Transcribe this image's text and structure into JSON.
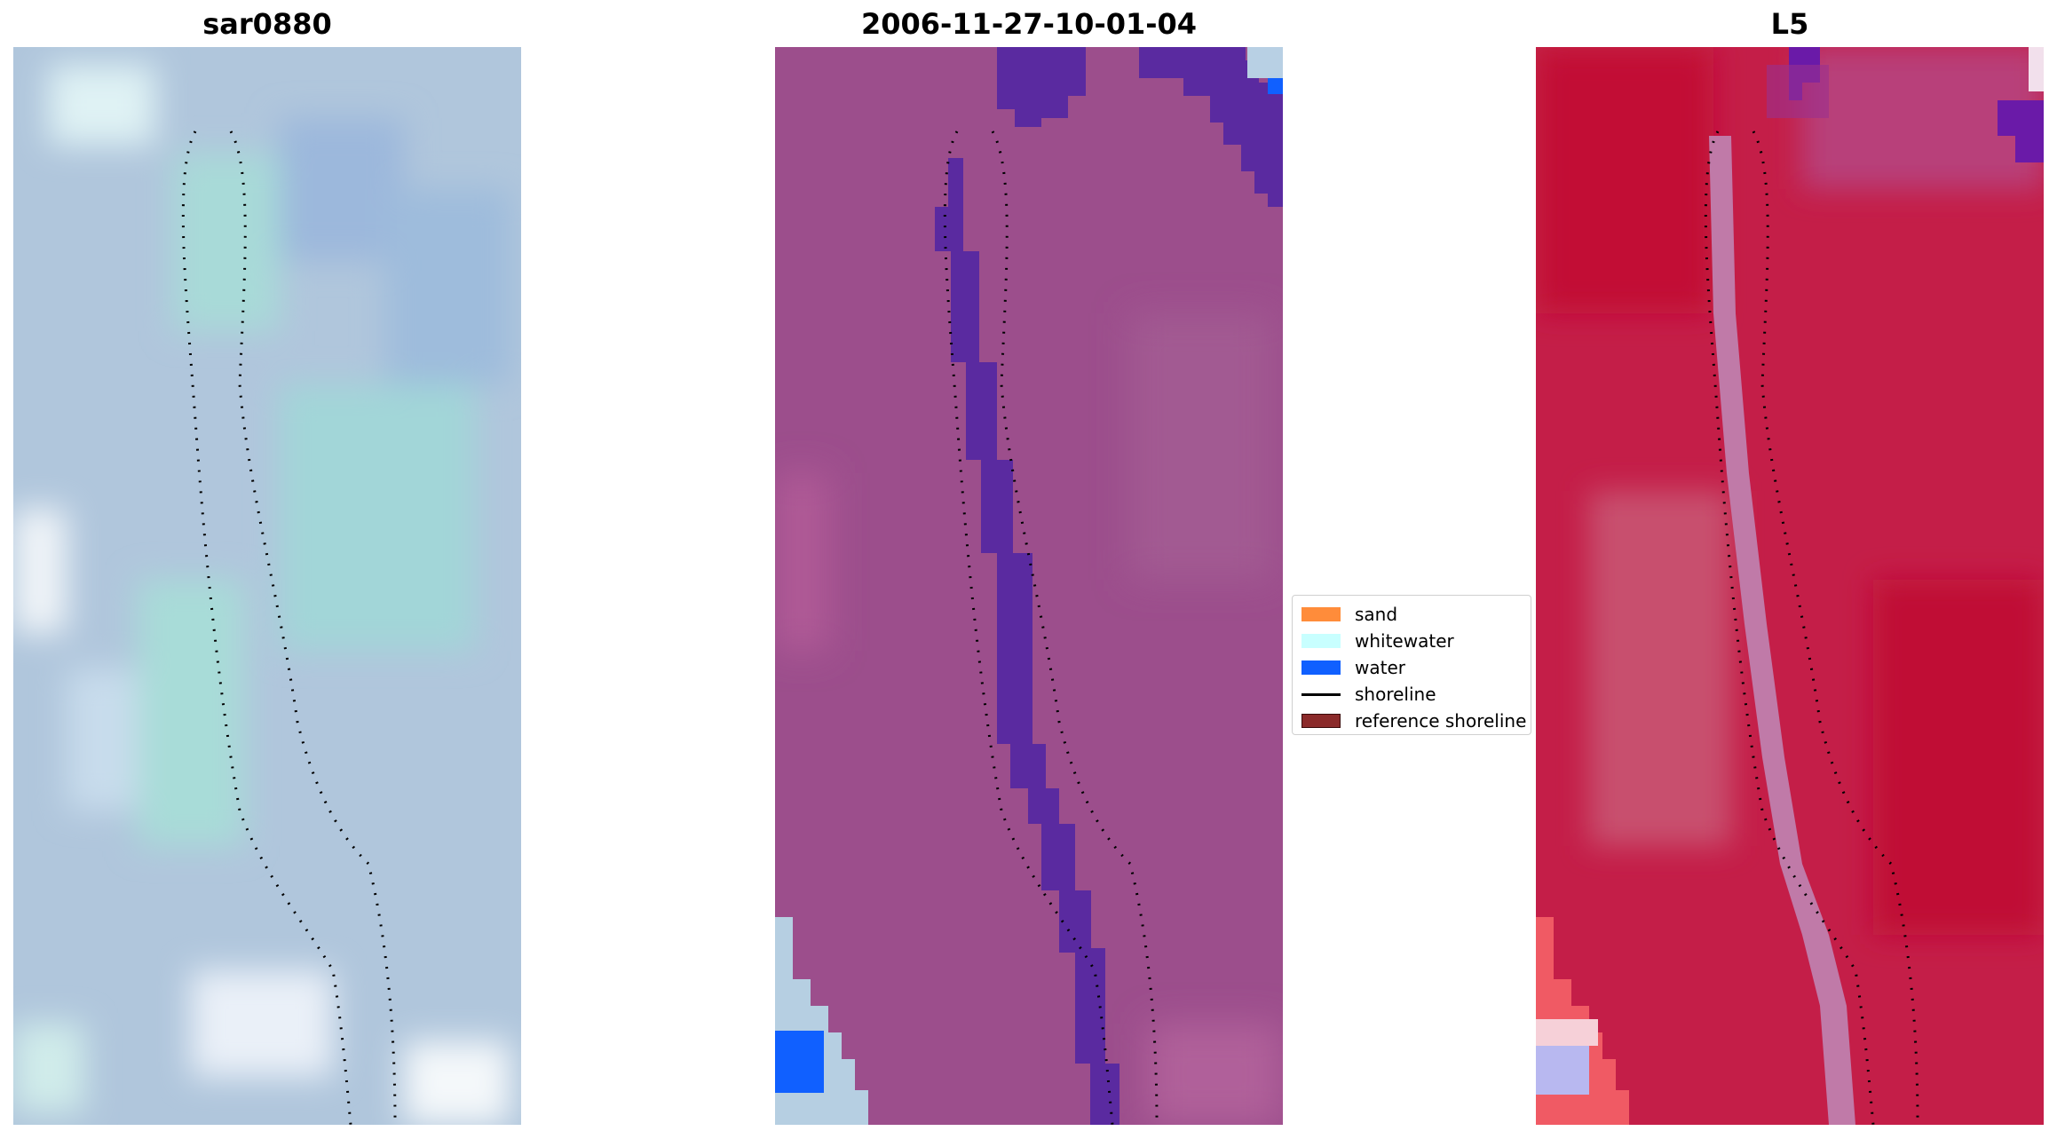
{
  "panels": [
    {
      "title": "sar0880"
    },
    {
      "title": "2006-11-27-10-01-04"
    },
    {
      "title": "L5"
    }
  ],
  "legend": {
    "items": [
      {
        "label": "sand",
        "color": "#ff8c3a",
        "kind": "patch"
      },
      {
        "label": "whitewater",
        "color": "#c8ffff",
        "kind": "patch"
      },
      {
        "label": "water",
        "color": "#1060ff",
        "kind": "patch"
      },
      {
        "label": "shoreline",
        "color": "#000000",
        "kind": "line"
      },
      {
        "label": "reference shoreline",
        "color": "#8b2a2a",
        "kind": "patch"
      }
    ]
  },
  "colors": {
    "sar_base": "#b4c8dc",
    "classified_base": "#9c4e8c",
    "water_class": "#5a2aa0",
    "l5_base": "#c81e46"
  }
}
